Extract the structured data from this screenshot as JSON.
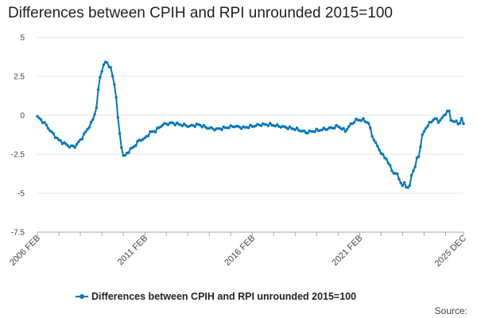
{
  "chart_data": {
    "type": "line",
    "title": "Differences between CPIH and RPI unrounded 2015=100",
    "xlabel": "",
    "ylabel": "",
    "ylim": [
      -7.5,
      5
    ],
    "yticks": [
      5,
      2.5,
      0,
      -2.5,
      -5,
      -7.5
    ],
    "ytick_labels": [
      "5",
      "2.5",
      "0",
      "-2.5",
      "-5",
      "-7.5"
    ],
    "xtick_labels": [
      "2006 FEB",
      "2011 FEB",
      "2016 FEB",
      "2021 FEB",
      "2025 DEC"
    ],
    "xtick_index": [
      0,
      60,
      120,
      180,
      238
    ],
    "grid": true,
    "legend_position": "bottom",
    "source": "Source:",
    "series": [
      {
        "name": "Differences between CPIH and RPI unrounded 2015=100",
        "color": "#0077bb",
        "anchors": [
          [
            0,
            -0.1
          ],
          [
            4,
            -0.5
          ],
          [
            8,
            -1.1
          ],
          [
            12,
            -1.6
          ],
          [
            15,
            -1.8
          ],
          [
            18,
            -2.0
          ],
          [
            21,
            -2.0
          ],
          [
            24,
            -1.6
          ],
          [
            28,
            -0.9
          ],
          [
            31,
            -0.3
          ],
          [
            33,
            0.5
          ],
          [
            34,
            1.6
          ],
          [
            35,
            2.4
          ],
          [
            36,
            2.9
          ],
          [
            37,
            3.2
          ],
          [
            38,
            3.4
          ],
          [
            39,
            3.35
          ],
          [
            40,
            3.2
          ],
          [
            41,
            3.0
          ],
          [
            42,
            2.5
          ],
          [
            43,
            2.0
          ],
          [
            44,
            1.2
          ],
          [
            45,
            -0.2
          ],
          [
            46,
            -1.2
          ],
          [
            47,
            -2.0
          ],
          [
            48,
            -2.6
          ],
          [
            49,
            -2.6
          ],
          [
            51,
            -2.3
          ],
          [
            54,
            -2.0
          ],
          [
            57,
            -1.6
          ],
          [
            60,
            -1.5
          ],
          [
            63,
            -1.1
          ],
          [
            66,
            -1.0
          ],
          [
            70,
            -0.6
          ],
          [
            75,
            -0.5
          ],
          [
            80,
            -0.6
          ],
          [
            85,
            -0.7
          ],
          [
            90,
            -0.6
          ],
          [
            95,
            -0.8
          ],
          [
            100,
            -0.9
          ],
          [
            105,
            -0.8
          ],
          [
            110,
            -0.7
          ],
          [
            115,
            -0.8
          ],
          [
            120,
            -0.7
          ],
          [
            125,
            -0.6
          ],
          [
            130,
            -0.6
          ],
          [
            135,
            -0.7
          ],
          [
            140,
            -0.8
          ],
          [
            145,
            -0.9
          ],
          [
            150,
            -1.1
          ],
          [
            155,
            -1.0
          ],
          [
            160,
            -0.9
          ],
          [
            165,
            -0.8
          ],
          [
            168,
            -0.7
          ],
          [
            172,
            -1.0
          ],
          [
            175,
            -0.6
          ],
          [
            178,
            -0.3
          ],
          [
            182,
            -0.3
          ],
          [
            185,
            -0.5
          ],
          [
            187,
            -1.3
          ],
          [
            189,
            -1.8
          ],
          [
            191,
            -2.2
          ],
          [
            193,
            -2.6
          ],
          [
            195,
            -2.8
          ],
          [
            197,
            -3.3
          ],
          [
            199,
            -3.7
          ],
          [
            201,
            -3.8
          ],
          [
            203,
            -4.3
          ],
          [
            204,
            -4.6
          ],
          [
            205,
            -4.3
          ],
          [
            206,
            -4.6
          ],
          [
            208,
            -4.6
          ],
          [
            209,
            -3.8
          ],
          [
            211,
            -3.3
          ],
          [
            212,
            -2.8
          ],
          [
            213,
            -2.6
          ],
          [
            214,
            -2.0
          ],
          [
            215,
            -1.3
          ],
          [
            217,
            -0.8
          ],
          [
            220,
            -0.4
          ],
          [
            222,
            -0.2
          ],
          [
            224,
            -0.4
          ],
          [
            226,
            -0.2
          ],
          [
            228,
            0.1
          ],
          [
            229,
            0.3
          ],
          [
            230,
            0.2
          ],
          [
            231,
            -0.3
          ],
          [
            233,
            -0.4
          ],
          [
            235,
            -0.5
          ],
          [
            236,
            -0.5
          ],
          [
            237,
            -0.2
          ],
          [
            238,
            -0.6
          ]
        ]
      }
    ]
  }
}
